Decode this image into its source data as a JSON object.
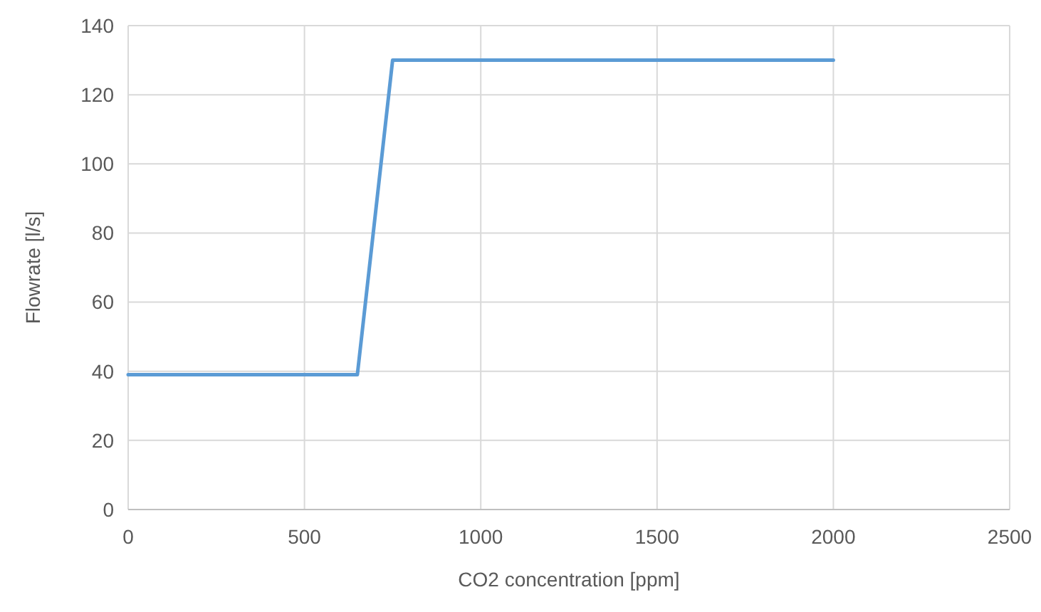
{
  "chart_data": {
    "type": "line",
    "xlabel": "CO2 concentration [ppm]",
    "ylabel": "Flowrate [l/s]",
    "x": [
      0,
      650,
      750,
      2000
    ],
    "series": [
      {
        "color": "#5b9bd5",
        "values": [
          39,
          39,
          130,
          130
        ]
      }
    ],
    "xlim": [
      0,
      2500
    ],
    "xticks": [
      0,
      500,
      1000,
      1500,
      2000,
      2500
    ],
    "ylim": [
      0,
      140
    ],
    "yticks": [
      0,
      20,
      40,
      60,
      80,
      100,
      120,
      140
    ],
    "grid": true,
    "marker": "none",
    "line_style": "solid"
  }
}
